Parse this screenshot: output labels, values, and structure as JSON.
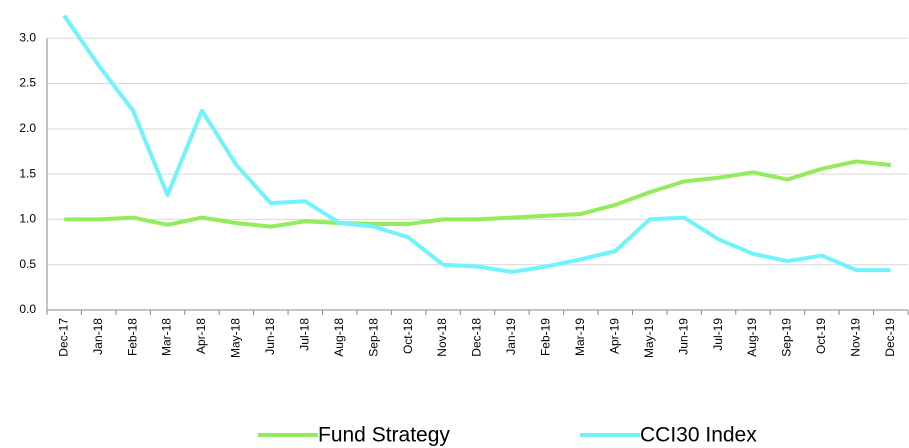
{
  "chart_data": {
    "type": "line",
    "categories": [
      "Dec-17",
      "Jan-18",
      "Feb-18",
      "Mar-18",
      "Apr-18",
      "May-18",
      "Jun-18",
      "Jul-18",
      "Aug-18",
      "Sep-18",
      "Oct-18",
      "Nov-18",
      "Dec-18",
      "Jan-19",
      "Feb-19",
      "Mar-19",
      "Apr-19",
      "May-19",
      "Jun-19",
      "Jul-19",
      "Aug-19",
      "Sep-19",
      "Oct-19",
      "Nov-19",
      "Dec-19"
    ],
    "series": [
      {
        "name": "Fund Strategy",
        "color": "#92ec5c",
        "values": [
          1.0,
          1.0,
          1.02,
          0.94,
          1.02,
          0.96,
          0.92,
          0.98,
          0.96,
          0.95,
          0.95,
          1.0,
          1.0,
          1.02,
          1.04,
          1.06,
          1.16,
          1.3,
          1.42,
          1.46,
          1.52,
          1.44,
          1.56,
          1.64,
          1.6
        ]
      },
      {
        "name": "CCI30 Index",
        "color": "#70f3fb",
        "values": [
          3.25,
          2.7,
          2.2,
          1.27,
          2.2,
          1.6,
          1.18,
          1.2,
          0.96,
          0.92,
          0.8,
          0.5,
          0.48,
          0.42,
          0.48,
          0.56,
          0.65,
          1.0,
          1.02,
          0.78,
          0.62,
          0.54,
          0.6,
          0.44,
          0.44
        ]
      }
    ],
    "ylim": [
      0,
      3.4
    ],
    "yticks": [
      {
        "value": 0,
        "label": "0.0"
      },
      0.5,
      {
        "value": 1,
        "label": "1.0"
      },
      1.5,
      {
        "value": 2,
        "label": "2.0"
      },
      2.5,
      {
        "value": 3,
        "label": "3.0"
      }
    ],
    "grid": true,
    "legend": "bottom"
  }
}
